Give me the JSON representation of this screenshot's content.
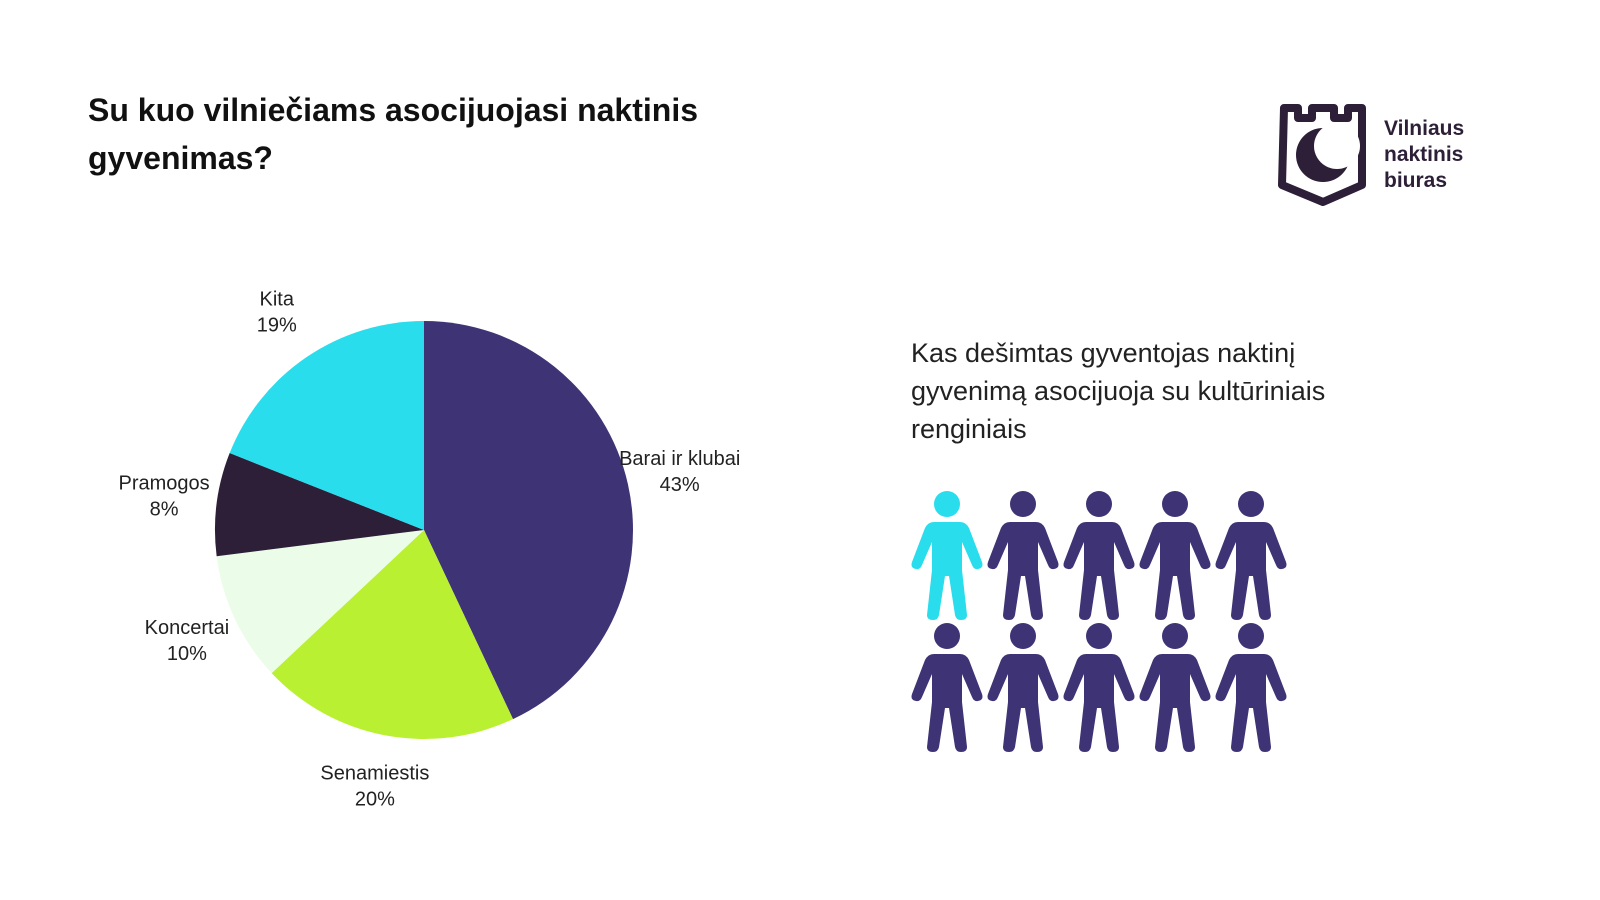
{
  "header": {
    "title": "Su kuo vilniečiams asocijuojasi naktinis gyvenimas?"
  },
  "logo": {
    "lines": [
      "Vilniaus",
      "naktinis",
      "biuras"
    ]
  },
  "chart_data": {
    "type": "pie",
    "categories": [
      "Barai ir klubai",
      "Senamiestis",
      "Koncertai",
      "Pramogos",
      "Kita"
    ],
    "values": [
      43,
      20,
      10,
      8,
      19
    ],
    "value_labels": [
      "43%",
      "20%",
      "10%",
      "8%",
      "19%"
    ],
    "colors": [
      "#3d3375",
      "#b9f032",
      "#ebfde8",
      "#2c1f37",
      "#29dded"
    ]
  },
  "callout": {
    "text": "Kas dešimtas gyventojas naktinį gyvenimą asocijuoja su kultūriniais renginiais"
  }
}
